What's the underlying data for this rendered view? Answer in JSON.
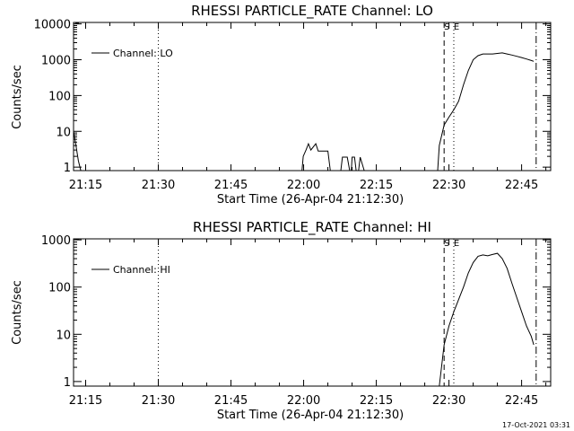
{
  "footer_timestamp": "17-Oct-2021 03:31",
  "chart_data": [
    {
      "type": "line",
      "title": "RHESSI PARTICLE_RATE Channel: LO",
      "xlabel": "Start Time (26-Apr-04 21:12:30)",
      "ylabel": "Counts/sec",
      "y_scale": "log",
      "xlim": [
        "21:12:30",
        "22:51:00"
      ],
      "ylim": [
        0.8,
        11000
      ],
      "x_ticks": [
        "21:15",
        "21:30",
        "21:45",
        "22:00",
        "22:15",
        "22:30",
        "22:45"
      ],
      "y_ticks": [
        "1",
        "10",
        "100",
        "1000",
        "10000"
      ],
      "legend": {
        "label": "Channel: LO",
        "position": "top-left"
      },
      "markers": [
        {
          "label": "",
          "x": "21:30",
          "style": "dotted"
        },
        {
          "label": "S",
          "x": "22:29",
          "style": "dashed"
        },
        {
          "label": "E",
          "x": "22:31",
          "style": "dotted"
        },
        {
          "label": "",
          "x": "22:48",
          "style": "dashdot"
        }
      ],
      "series": [
        {
          "name": "Channel: LO",
          "segments": [
            [
              [
                "21:12:30",
                10
              ],
              [
                "21:13",
                4
              ],
              [
                "21:13:30",
                1.5
              ],
              [
                "21:14",
                0.8
              ]
            ],
            [
              [
                "21:59:40",
                0.8
              ],
              [
                "21:59:55",
                2
              ],
              [
                "22:00:30",
                3
              ],
              [
                "22:01",
                4.5
              ],
              [
                "22:01:30",
                3
              ],
              [
                "22:02:30",
                4.5
              ],
              [
                "22:03",
                2.8
              ],
              [
                "22:04",
                2.8
              ],
              [
                "22:05",
                2.8
              ],
              [
                "22:05:30",
                0.8
              ]
            ],
            [
              [
                "22:07:40",
                0.8
              ],
              [
                "22:08",
                1.9
              ],
              [
                "22:09",
                1.9
              ],
              [
                "22:09:30",
                0.8
              ]
            ],
            [
              [
                "22:09:50",
                0.8
              ],
              [
                "22:10",
                1.9
              ],
              [
                "22:10:30",
                1.9
              ],
              [
                "22:10:50",
                0.8
              ]
            ],
            [
              [
                "22:11:20",
                0.8
              ],
              [
                "22:11:40",
                1.9
              ],
              [
                "22:12:30",
                0.8
              ]
            ],
            [
              [
                "22:27:40",
                0.8
              ],
              [
                "22:28",
                4
              ],
              [
                "22:29",
                15
              ],
              [
                "22:30",
                25
              ],
              [
                "22:31",
                40
              ],
              [
                "22:32",
                70
              ],
              [
                "22:33",
                200
              ],
              [
                "22:34",
                500
              ],
              [
                "22:35",
                1000
              ],
              [
                "22:36",
                1300
              ],
              [
                "22:37",
                1450
              ],
              [
                "22:38",
                1450
              ],
              [
                "22:39",
                1450
              ],
              [
                "22:40",
                1500
              ],
              [
                "22:41",
                1550
              ],
              [
                "22:42",
                1450
              ],
              [
                "22:43",
                1350
              ],
              [
                "22:44",
                1250
              ],
              [
                "22:45",
                1150
              ],
              [
                "22:46",
                1050
              ],
              [
                "22:47",
                950
              ],
              [
                "22:47:30",
                900
              ]
            ]
          ]
        }
      ]
    },
    {
      "type": "line",
      "title": "RHESSI PARTICLE_RATE Channel: HI",
      "xlabel": "Start Time (26-Apr-04 21:12:30)",
      "ylabel": "Counts/sec",
      "y_scale": "log",
      "xlim": [
        "21:12:30",
        "22:51:00"
      ],
      "ylim": [
        0.8,
        1050
      ],
      "x_ticks": [
        "21:15",
        "21:30",
        "21:45",
        "22:00",
        "22:15",
        "22:30",
        "22:45"
      ],
      "y_ticks": [
        "1",
        "10",
        "100",
        "1000"
      ],
      "legend": {
        "label": "Channel: HI",
        "position": "top-left"
      },
      "markers": [
        {
          "label": "",
          "x": "21:30",
          "style": "dotted"
        },
        {
          "label": "S",
          "x": "22:29",
          "style": "dashed"
        },
        {
          "label": "E",
          "x": "22:31",
          "style": "dotted"
        },
        {
          "label": "",
          "x": "22:48",
          "style": "dashdot"
        }
      ],
      "series": [
        {
          "name": "Channel: HI",
          "segments": [
            [
              [
                "22:28",
                0.8
              ],
              [
                "22:29",
                6
              ],
              [
                "22:30",
                15
              ],
              [
                "22:31",
                30
              ],
              [
                "22:32",
                55
              ],
              [
                "22:33",
                100
              ],
              [
                "22:34",
                200
              ],
              [
                "22:35",
                330
              ],
              [
                "22:36",
                450
              ],
              [
                "22:37",
                480
              ],
              [
                "22:38",
                460
              ],
              [
                "22:39",
                490
              ],
              [
                "22:40",
                520
              ],
              [
                "22:41",
                400
              ],
              [
                "22:42",
                250
              ],
              [
                "22:43",
                120
              ],
              [
                "22:44",
                60
              ],
              [
                "22:45",
                30
              ],
              [
                "22:46",
                15
              ],
              [
                "22:47",
                9
              ],
              [
                "22:47:30",
                6
              ]
            ]
          ]
        }
      ]
    }
  ]
}
